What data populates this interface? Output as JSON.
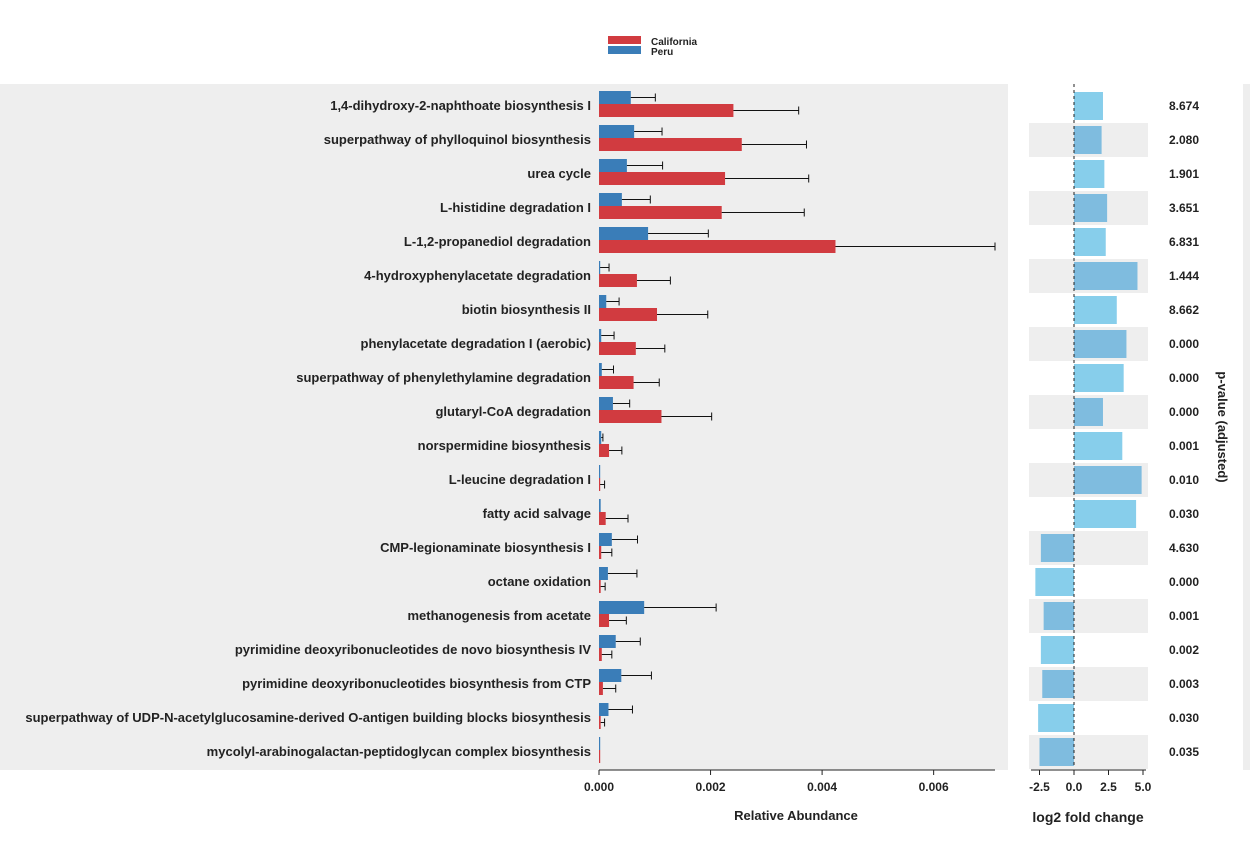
{
  "chart_data": [
    {
      "type": "bar",
      "orientation": "horizontal",
      "xlabel": "Relative Abundance",
      "xlim": [
        0,
        0.0071
      ],
      "xticks": [
        "0.000",
        "0.002",
        "0.004",
        "0.006"
      ],
      "xtick_values": [
        0,
        0.002,
        0.004,
        0.006
      ],
      "legend_position": "top",
      "categories": [
        "1,4-dihydroxy-2-naphthoate biosynthesis I",
        "superpathway of phylloquinol biosynthesis",
        "urea cycle",
        "L-histidine degradation I",
        "L-1,2-propanediol degradation",
        "4-hydroxyphenylacetate degradation",
        "biotin biosynthesis II",
        "phenylacetate degradation I (aerobic)",
        "superpathway of phenylethylamine degradation",
        "glutaryl-CoA degradation",
        "norspermidine biosynthesis",
        "L-leucine degradation I",
        "fatty acid salvage",
        "CMP-legionaminate biosynthesis I",
        "octane oxidation",
        "methanogenesis from acetate",
        "pyrimidine deoxyribonucleotides de novo biosynthesis IV",
        "pyrimidine deoxyribonucleotides biosynthesis from CTP",
        "superpathway of UDP-N-acetylglucosamine-derived O-antigen building blocks biosynthesis",
        "mycolyl-arabinogalactan-peptidoglycan complex biosynthesis"
      ],
      "series": [
        {
          "name": "Peru",
          "color": "#3a7db8",
          "values": [
            0.00057,
            0.00063,
            0.0005,
            0.00041,
            0.00088,
            2e-05,
            0.00013,
            4e-05,
            5e-05,
            0.00025,
            4e-05,
            1e-05,
            3e-05,
            0.00023,
            0.00016,
            0.00081,
            0.0003,
            0.0004,
            0.00017,
            1e-05
          ],
          "err_high": [
            0.00101,
            0.00113,
            0.00114,
            0.00092,
            0.00196,
            0.00018,
            0.00036,
            0.00027,
            0.00026,
            0.00055,
            7e-05,
            1e-05,
            3e-05,
            0.00069,
            0.00068,
            0.0021,
            0.00074,
            0.00094,
            0.0006,
            1e-05
          ]
        },
        {
          "name": "California",
          "color": "#d13b40",
          "values": [
            0.00241,
            0.00256,
            0.00226,
            0.0022,
            0.00424,
            0.00068,
            0.00104,
            0.00066,
            0.00062,
            0.00112,
            0.00018,
            2e-05,
            0.00012,
            4e-05,
            3e-05,
            0.00018,
            5e-05,
            7e-05,
            3e-05,
            1e-05
          ],
          "err_high": [
            0.00358,
            0.00372,
            0.00376,
            0.00368,
            0.0071,
            0.00128,
            0.00195,
            0.00118,
            0.00108,
            0.00202,
            0.00041,
            0.0001,
            0.00052,
            0.00023,
            0.00011,
            0.00049,
            0.00023,
            0.0003,
            0.0001,
            1e-05
          ]
        }
      ]
    },
    {
      "type": "bar",
      "orientation": "horizontal",
      "xlabel": "log2 fold change",
      "xlim": [
        -3.2,
        5.2
      ],
      "xticks": [
        "-2.5",
        "0.0",
        "2.5",
        "5.0"
      ],
      "xtick_values": [
        -2.5,
        0,
        2.5,
        5
      ],
      "zero_line": "dashed",
      "values": [
        2.1,
        2.0,
        2.2,
        2.4,
        2.3,
        4.6,
        3.1,
        3.8,
        3.6,
        2.1,
        3.5,
        4.9,
        4.5,
        -2.4,
        -2.8,
        -2.2,
        -2.4,
        -2.3,
        -2.6,
        -2.5
      ],
      "colors": [
        "#87ceeb",
        "#7fbcdf"
      ],
      "right_label": "p-value (adjusted)",
      "pvalues": [
        "8.674",
        "2.080",
        "1.901",
        "3.651",
        "6.831",
        "1.444",
        "8.662",
        "0.000",
        "0.000",
        "0.000",
        "0.001",
        "0.010",
        "0.030",
        "4.630",
        "0.000",
        "0.001",
        "0.002",
        "0.003",
        "0.030",
        "0.035"
      ]
    }
  ]
}
